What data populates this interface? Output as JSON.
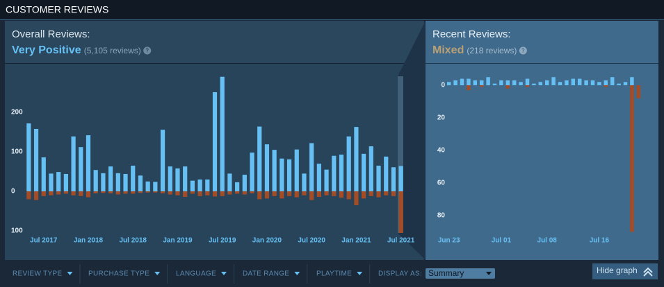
{
  "header": {
    "title": "CUSTOMER REVIEWS"
  },
  "help_icon": "?",
  "chart_data": [
    {
      "type": "bar",
      "title": "Overall Reviews:",
      "rating": "Very Positive",
      "rating_color": "#66c0f4",
      "review_count": "(5,105 reviews)",
      "categories": [
        null,
        null,
        "Jul 2017",
        null,
        null,
        null,
        null,
        null,
        "Jan 2018",
        null,
        null,
        null,
        null,
        null,
        "Jul 2018",
        null,
        null,
        null,
        null,
        null,
        "Jan 2019",
        null,
        null,
        null,
        null,
        null,
        "Jul 2019",
        null,
        null,
        null,
        null,
        null,
        "Jan 2020",
        null,
        null,
        null,
        null,
        null,
        "Jul 2020",
        null,
        null,
        null,
        null,
        null,
        "Jan 2021",
        null,
        null,
        null,
        null,
        null,
        "Jul 2021"
      ],
      "series": [
        {
          "color": "#66c0f4",
          "values": [
            172,
            158,
            86,
            45,
            49,
            44,
            139,
            112,
            142,
            54,
            46,
            63,
            46,
            44,
            65,
            40,
            25,
            24,
            156,
            63,
            58,
            63,
            27,
            30,
            30,
            251,
            290,
            45,
            23,
            42,
            98,
            164,
            119,
            105,
            83,
            81,
            106,
            45,
            122,
            70,
            55,
            90,
            93,
            139,
            163,
            95,
            114,
            65,
            88,
            61,
            64
          ]
        },
        {
          "color": "#a34c25",
          "values": [
            -20,
            -22,
            -12,
            -10,
            -8,
            -6,
            -10,
            -12,
            -15,
            -5,
            -4,
            -5,
            -8,
            -6,
            -6,
            -4,
            -3,
            -3,
            -5,
            -8,
            -10,
            -14,
            -6,
            -12,
            -10,
            -13,
            -12,
            -8,
            -6,
            -8,
            -5,
            -20,
            -18,
            -12,
            -18,
            -12,
            -15,
            -10,
            -22,
            -14,
            -10,
            -12,
            -16,
            -20,
            -35,
            -18,
            -12,
            -15,
            -10,
            -12,
            -105
          ]
        }
      ],
      "ylim": [
        -110,
        315
      ],
      "yticks": [
        200,
        100,
        0,
        {
          "value": -100,
          "label": "100"
        }
      ]
    },
    {
      "type": "bar",
      "title": "Recent Reviews:",
      "rating": "Mixed",
      "rating_color": "#b9a074",
      "review_count": "(218 reviews)",
      "categories": [
        "Jun 23",
        null,
        null,
        null,
        null,
        null,
        null,
        null,
        "Jul 01",
        null,
        null,
        null,
        null,
        null,
        null,
        "Jul 08",
        null,
        null,
        null,
        null,
        null,
        null,
        null,
        "Jul 16",
        null,
        null,
        null,
        null,
        null,
        null
      ],
      "series": [
        {
          "color": "#66c0f4",
          "values": [
            2,
            3,
            4,
            4,
            3,
            3,
            5,
            1,
            3,
            3,
            3,
            2,
            4,
            1,
            2,
            3,
            5,
            2,
            3,
            4,
            4,
            3,
            3,
            2,
            3,
            5,
            1,
            2,
            5,
            0
          ]
        },
        {
          "color": "#a34c25",
          "values": [
            0,
            0,
            0,
            -3,
            0,
            -1,
            0,
            0,
            0,
            -2,
            0,
            0,
            -1,
            0,
            0,
            0,
            0,
            0,
            0,
            0,
            0,
            0,
            0,
            0,
            -1,
            0,
            0,
            0,
            -90,
            -8
          ]
        }
      ],
      "ylim": [
        -92,
        8
      ],
      "yticks": [
        0,
        {
          "value": -20,
          "label": "20"
        },
        {
          "value": -40,
          "label": "40"
        },
        {
          "value": -60,
          "label": "60"
        },
        {
          "value": -80,
          "label": "80"
        }
      ]
    }
  ],
  "filters": [
    "REVIEW TYPE",
    "PURCHASE TYPE",
    "LANGUAGE",
    "DATE RANGE",
    "PLAYTIME"
  ],
  "display_as": {
    "label": "DISPLAY AS:",
    "value": "Summary"
  },
  "hide_graph": "Hide graph"
}
